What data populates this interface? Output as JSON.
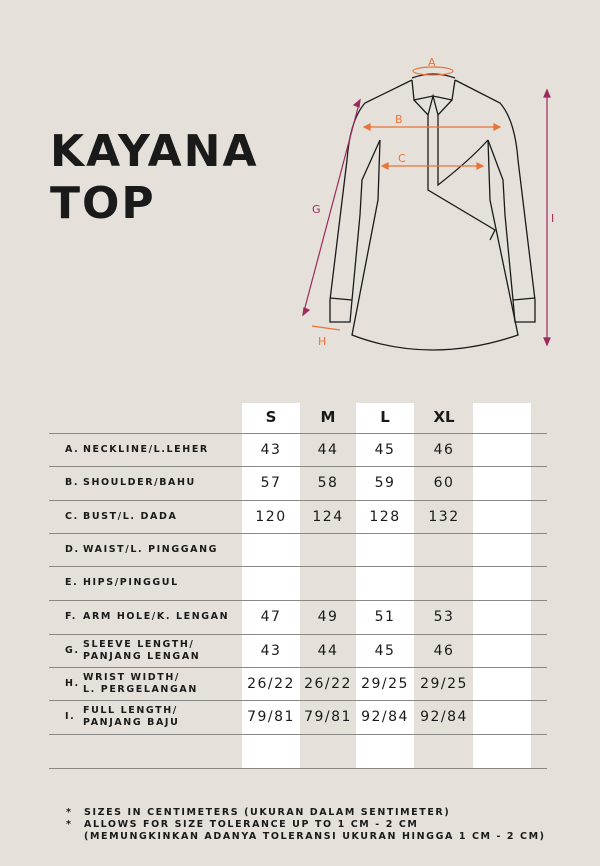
{
  "title": {
    "line1": "KAYANA",
    "line2": "TOP"
  },
  "diagram": {
    "labels": {
      "a": "A",
      "b": "B",
      "c": "C",
      "g": "G",
      "h": "H",
      "i": "I"
    },
    "colors": {
      "horizontal_arrows": "#e8743b",
      "vertical_arrows": "#9c2a5e"
    }
  },
  "table": {
    "sizes": [
      "S",
      "M",
      "L",
      "XL",
      ""
    ],
    "rows": [
      {
        "key": "A.",
        "label": [
          "NECKLINE/L.LEHER"
        ],
        "values": [
          "43",
          "44",
          "45",
          "46"
        ]
      },
      {
        "key": "B.",
        "label": [
          "SHOULDER/BAHU"
        ],
        "values": [
          "57",
          "58",
          "59",
          "60"
        ]
      },
      {
        "key": "C.",
        "label": [
          "BUST/L. DADA"
        ],
        "values": [
          "120",
          "124",
          "128",
          "132"
        ]
      },
      {
        "key": "D.",
        "label": [
          "WAIST/L. PINGGANG"
        ],
        "values": [
          "",
          "",
          "",
          ""
        ]
      },
      {
        "key": "E.",
        "label": [
          "HIPS/PINGGUL"
        ],
        "values": [
          "",
          "",
          "",
          ""
        ]
      },
      {
        "key": "F.",
        "label": [
          "ARM HOLE/K. LENGAN"
        ],
        "values": [
          "47",
          "49",
          "51",
          "53"
        ]
      },
      {
        "key": "G.",
        "label": [
          "SLEEVE LENGTH/",
          "PANJANG LENGAN"
        ],
        "values": [
          "43",
          "44",
          "45",
          "46"
        ]
      },
      {
        "key": "H.",
        "label": [
          "WRIST WIDTH/",
          "L. PERGELANGAN"
        ],
        "values": [
          "26/22",
          "26/22",
          "29/25",
          "29/25"
        ]
      },
      {
        "key": "I.",
        "label": [
          "FULL LENGTH/",
          "PANJANG BAJU"
        ],
        "values": [
          "79/81",
          "79/81",
          "92/84",
          "92/84"
        ]
      }
    ]
  },
  "notes": [
    {
      "bullet": "*",
      "text": "SIZES IN CENTIMETERS  (UKURAN DALAM SENTIMETER)"
    },
    {
      "bullet": "*",
      "text": "ALLOWS FOR SIZE TOLERANCE UP TO 1 CM - 2 CM"
    },
    {
      "bullet": "",
      "text": "(MEMUNGKINKAN ADANYA TOLERANSI UKURAN HINGGA 1 CM - 2 CM)"
    }
  ]
}
